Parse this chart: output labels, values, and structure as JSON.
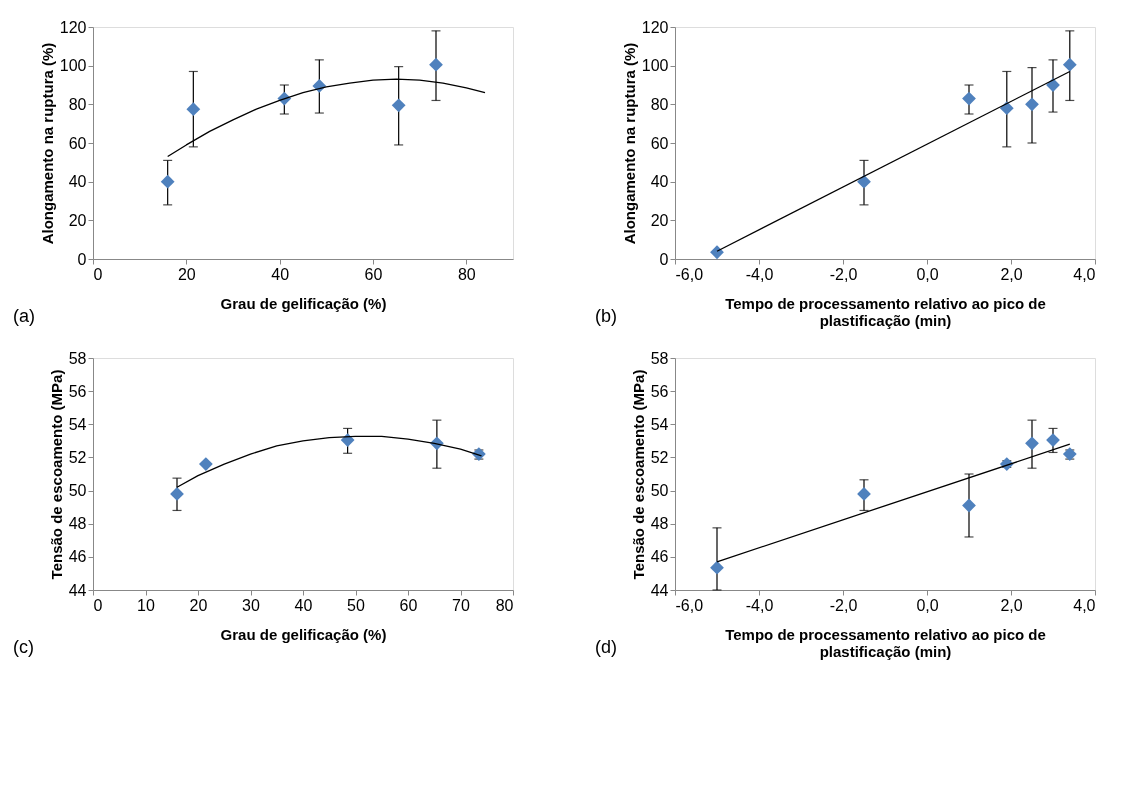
{
  "chart_data": [
    {
      "type": "scatter",
      "xlabel": "Grau de gelificação (%)",
      "ylabel": "Alongamento na ruptura (%)",
      "annotations": [
        "(a)"
      ],
      "xlim": [
        0,
        90
      ],
      "xticks": [
        0,
        20,
        40,
        60,
        80
      ],
      "ylim": [
        0,
        120
      ],
      "yticks": [
        0,
        20,
        40,
        60,
        80,
        100,
        120
      ],
      "grid": false,
      "marker": "diamond",
      "series": [
        {
          "color": "#4f81bd",
          "x": [
            16,
            21.5,
            41,
            48.5,
            65.5,
            73.5
          ],
          "values": [
            40,
            77.5,
            83,
            89.5,
            79.5,
            100.5
          ],
          "errors": [
            [
              28,
              51
            ],
            [
              58,
              97
            ],
            [
              75,
              90
            ],
            [
              75.5,
              103
            ],
            [
              59,
              99.5
            ],
            [
              82,
              118
            ]
          ]
        },
        {
          "type": "line",
          "color": "#000000",
          "marker": "none",
          "line_style": "solid",
          "x": [
            16,
            20,
            25,
            30,
            35,
            40,
            45,
            50,
            55,
            60,
            65,
            70,
            75,
            80,
            84
          ],
          "values": [
            53,
            59,
            66,
            72,
            77.5,
            82,
            86,
            89,
            91,
            92.5,
            93,
            92.5,
            91,
            88.5,
            86
          ]
        }
      ]
    },
    {
      "type": "scatter",
      "xlabel": "Tempo de processamento relativo ao pico de plastificação (min)",
      "ylabel": "Alongamento na ruptura (%)",
      "annotations": [
        "(b)"
      ],
      "xlim": [
        -6,
        4
      ],
      "xticks": [
        {
          "value": -6,
          "label": "-6,0"
        },
        {
          "value": -4,
          "label": "-4,0"
        },
        {
          "value": -2,
          "label": "-2,0"
        },
        {
          "value": 0,
          "label": "0,0"
        },
        {
          "value": 2,
          "label": "2,0"
        },
        {
          "value": 4,
          "label": "4,0"
        }
      ],
      "ylim": [
        0,
        120
      ],
      "yticks": [
        0,
        20,
        40,
        60,
        80,
        100,
        120
      ],
      "grid": false,
      "marker": "diamond",
      "series": [
        {
          "color": "#4f81bd",
          "x": [
            -5,
            -1.5,
            1,
            1.9,
            2.5,
            3,
            3.4
          ],
          "values": [
            3.5,
            40,
            83,
            78,
            80,
            90,
            100.5
          ],
          "errors": [
            null,
            [
              28,
              51
            ],
            [
              75,
              90
            ],
            [
              58,
              97
            ],
            [
              60,
              99
            ],
            [
              76,
              103
            ],
            [
              82,
              118
            ]
          ]
        },
        {
          "type": "line",
          "color": "#000000",
          "marker": "none",
          "line_style": "solid",
          "x": [
            -5,
            3.4
          ],
          "values": [
            4,
            97
          ]
        }
      ]
    },
    {
      "type": "scatter",
      "xlabel": "Grau de gelificação (%)",
      "ylabel": "Tensão de escoamento (MPa)",
      "annotations": [
        "(c)"
      ],
      "xlim": [
        0,
        80
      ],
      "xticks": [
        0,
        10,
        20,
        30,
        40,
        50,
        60,
        70,
        80
      ],
      "ylim": [
        44,
        58
      ],
      "yticks": [
        44,
        46,
        48,
        50,
        52,
        54,
        56,
        58
      ],
      "grid": false,
      "marker": "diamond",
      "series": [
        {
          "color": "#4f81bd",
          "x": [
            16,
            21.5,
            48.5,
            65.5,
            73.5
          ],
          "values": [
            49.8,
            51.6,
            53.05,
            52.85,
            52.2
          ],
          "errors": [
            [
              48.8,
              50.75
            ],
            null,
            [
              52.25,
              53.75
            ],
            [
              51.35,
              54.25
            ],
            [
              51.9,
              52.45
            ]
          ]
        },
        {
          "type": "line",
          "color": "#000000",
          "marker": "none",
          "line_style": "solid",
          "x": [
            16,
            20,
            25,
            30,
            35,
            40,
            45,
            50,
            55,
            60,
            65,
            70,
            74
          ],
          "values": [
            50.2,
            50.9,
            51.6,
            52.2,
            52.7,
            53.0,
            53.2,
            53.27,
            53.27,
            53.1,
            52.85,
            52.5,
            52.1
          ]
        }
      ]
    },
    {
      "type": "scatter",
      "xlabel": "Tempo de processamento relativo ao pico de plastificação (min)",
      "ylabel": "Tensão de escoamento (MPa)",
      "annotations": [
        "(d)"
      ],
      "xlim": [
        -6,
        4
      ],
      "xticks": [
        {
          "value": -6,
          "label": "-6,0"
        },
        {
          "value": -4,
          "label": "-4,0"
        },
        {
          "value": -2,
          "label": "-2,0"
        },
        {
          "value": 0,
          "label": "0,0"
        },
        {
          "value": 2,
          "label": "2,0"
        },
        {
          "value": 4,
          "label": "4,0"
        }
      ],
      "ylim": [
        44,
        58
      ],
      "yticks": [
        44,
        46,
        48,
        50,
        52,
        54,
        56,
        58
      ],
      "grid": false,
      "marker": "diamond",
      "series": [
        {
          "color": "#4f81bd",
          "x": [
            -5,
            -1.5,
            1,
            1.9,
            2.5,
            3,
            3.4
          ],
          "values": [
            45.35,
            49.8,
            49.1,
            51.6,
            52.85,
            53.05,
            52.2
          ],
          "errors": [
            [
              44,
              47.75
            ],
            [
              48.8,
              50.65
            ],
            [
              47.2,
              51.0
            ],
            [
              51.4,
              51.8
            ],
            [
              51.35,
              54.25
            ],
            [
              52.3,
              53.75
            ],
            [
              51.9,
              52.45
            ]
          ]
        },
        {
          "type": "line",
          "color": "#000000",
          "marker": "none",
          "line_style": "solid",
          "x": [
            -5,
            3.4
          ],
          "values": [
            45.7,
            52.8
          ]
        }
      ]
    }
  ]
}
